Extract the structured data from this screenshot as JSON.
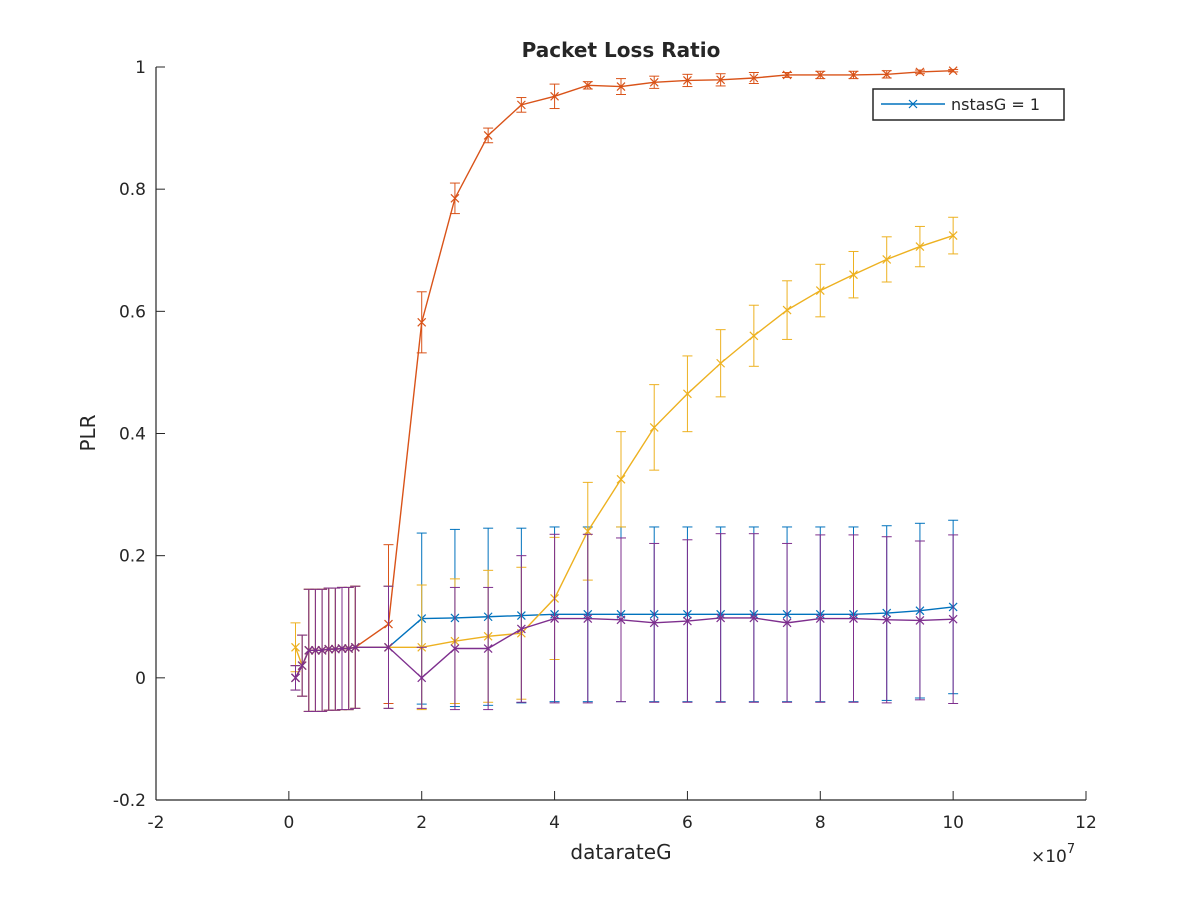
{
  "chart_data": {
    "type": "line",
    "title": "Packet Loss Ratio",
    "xlabel": "datarateG",
    "ylabel": "PLR",
    "xlim": [
      -2,
      12
    ],
    "ylim": [
      -0.2,
      1
    ],
    "x_ticks": [
      "-2",
      "0",
      "2",
      "4",
      "6",
      "8",
      "10",
      "12"
    ],
    "y_ticks": [
      "-0.2",
      "0",
      "0.2",
      "0.4",
      "0.6",
      "0.8",
      "1"
    ],
    "x_exponent": {
      "base": "×10",
      "power": "7"
    },
    "x_units": "×10^7",
    "x": [
      0.1,
      0.2,
      0.3,
      0.4,
      0.5,
      0.6,
      0.7,
      0.8,
      0.9,
      1,
      1.5,
      2,
      2.5,
      3,
      3.5,
      4,
      4.5,
      5,
      5.5,
      6,
      6.5,
      7,
      7.5,
      8,
      8.5,
      9,
      9.5,
      10
    ],
    "series": [
      {
        "name": "nstasG = 1",
        "color": "#0072BD",
        "values": [
          0.0,
          0.02,
          0.045,
          0.045,
          0.045,
          0.047,
          0.047,
          0.048,
          0.048,
          0.05,
          0.05,
          0.097,
          0.098,
          0.1,
          0.102,
          0.104,
          0.104,
          0.104,
          0.104,
          0.104,
          0.104,
          0.104,
          0.104,
          0.104,
          0.104,
          0.106,
          0.11,
          0.116
        ],
        "errors": [
          0.02,
          0.05,
          0.1,
          0.1,
          0.1,
          0.1,
          0.1,
          0.1,
          0.1,
          0.1,
          0.1,
          0.14,
          0.145,
          0.145,
          0.143,
          0.143,
          0.143,
          0.143,
          0.143,
          0.143,
          0.143,
          0.143,
          0.143,
          0.143,
          0.143,
          0.143,
          0.143,
          0.142
        ]
      },
      {
        "color": "#D95319",
        "values": [
          0.0,
          0.02,
          0.045,
          0.045,
          0.045,
          0.047,
          0.047,
          0.048,
          0.048,
          0.05,
          0.088,
          0.582,
          0.785,
          0.888,
          0.938,
          0.952,
          0.97,
          0.968,
          0.975,
          0.978,
          0.979,
          0.982,
          0.987,
          0.987,
          0.987,
          0.988,
          0.992,
          0.994
        ],
        "errors": [
          0.02,
          0.05,
          0.1,
          0.1,
          0.1,
          0.1,
          0.1,
          0.1,
          0.1,
          0.1,
          0.13,
          0.05,
          0.025,
          0.012,
          0.012,
          0.02,
          0.006,
          0.013,
          0.01,
          0.01,
          0.01,
          0.009,
          0.004,
          0.006,
          0.006,
          0.006,
          0.003,
          0.002
        ]
      },
      {
        "color": "#EDB120",
        "values": [
          0.05,
          0.02,
          0.045,
          0.045,
          0.045,
          0.047,
          0.047,
          0.048,
          0.048,
          0.05,
          0.05,
          0.05,
          0.06,
          0.068,
          0.073,
          0.13,
          0.24,
          0.325,
          0.41,
          0.465,
          0.515,
          0.56,
          0.602,
          0.634,
          0.66,
          0.685,
          0.706,
          0.724
        ],
        "errors": [
          0.04,
          0.05,
          0.1,
          0.1,
          0.1,
          0.1,
          0.1,
          0.1,
          0.1,
          0.1,
          0.1,
          0.102,
          0.102,
          0.108,
          0.108,
          0.1,
          0.08,
          0.078,
          0.07,
          0.062,
          0.055,
          0.05,
          0.048,
          0.043,
          0.038,
          0.037,
          0.033,
          0.03
        ]
      },
      {
        "color": "#7E2F8E",
        "values": [
          0.0,
          0.02,
          0.045,
          0.045,
          0.045,
          0.047,
          0.047,
          0.048,
          0.048,
          0.05,
          0.05,
          0.0,
          0.048,
          0.048,
          0.08,
          0.097,
          0.097,
          0.095,
          0.09,
          0.093,
          0.098,
          0.098,
          0.09,
          0.097,
          0.097,
          0.095,
          0.094,
          0.096
        ],
        "errors": [
          0.02,
          0.05,
          0.1,
          0.1,
          0.1,
          0.1,
          0.1,
          0.1,
          0.1,
          0.1,
          0.1,
          0.05,
          0.1,
          0.1,
          0.12,
          0.138,
          0.138,
          0.134,
          0.13,
          0.133,
          0.138,
          0.138,
          0.13,
          0.137,
          0.137,
          0.136,
          0.13,
          0.138
        ]
      }
    ],
    "legend": {
      "placement": "top-right",
      "entries": [
        "nstasG = 1"
      ]
    },
    "marker": "x",
    "grid": false
  }
}
